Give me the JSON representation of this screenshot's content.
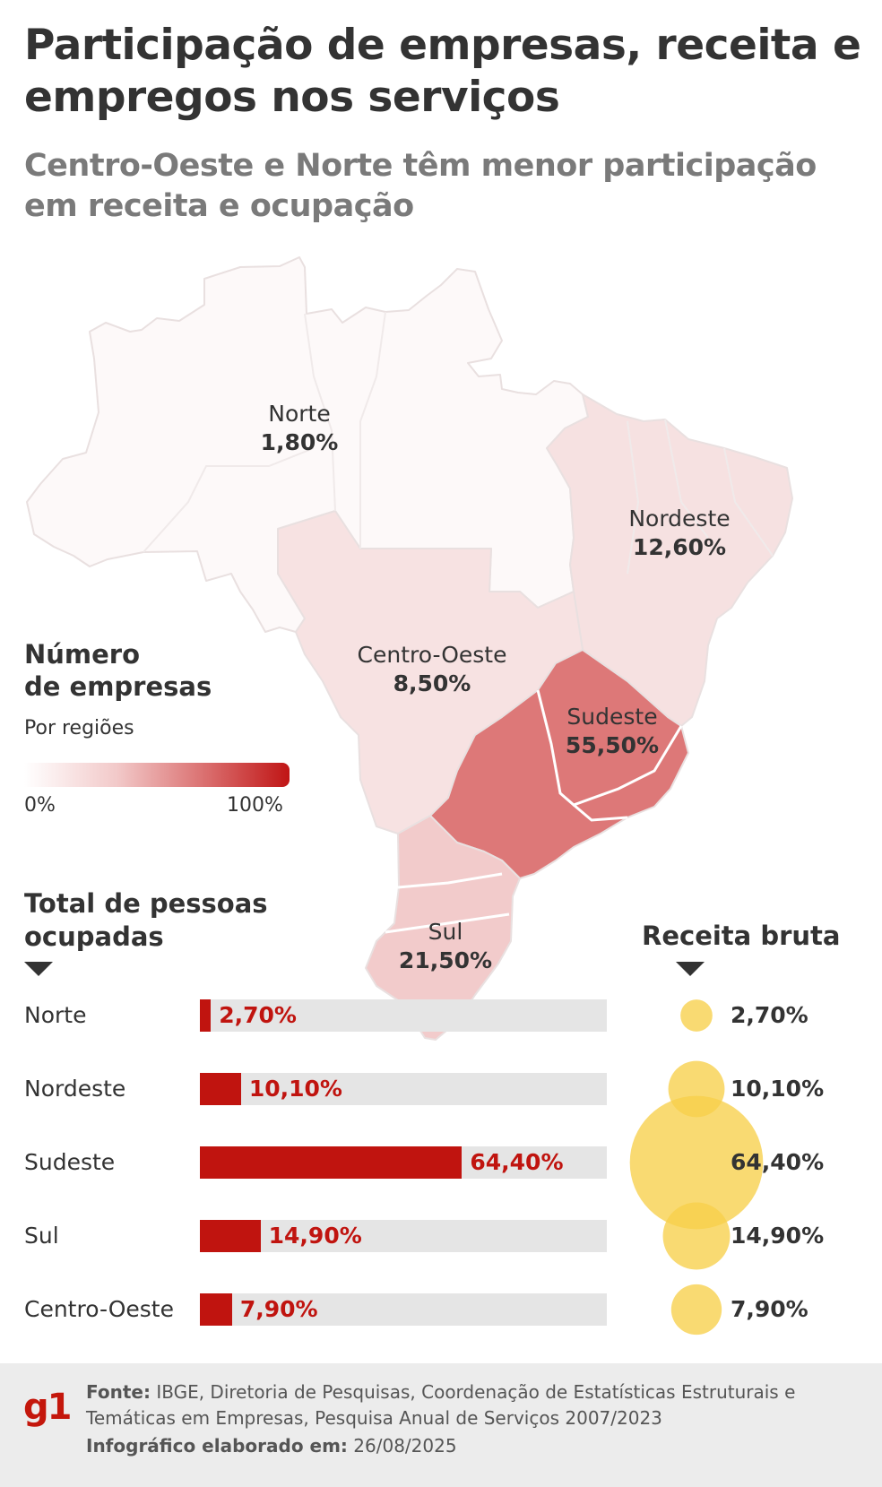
{
  "title": "Participação de empresas, receita e empregos nos serviços",
  "subtitle": "Centro-Oeste e Norte têm menor participação em receita e ocupação",
  "map_legend": {
    "title_line1": "Número",
    "title_line2": "de empresas",
    "subtitle": "Por regiões",
    "min_label": "0%",
    "max_label": "100%"
  },
  "employment_title_line1": "Total de pessoas",
  "employment_title_line2": "ocupadas",
  "revenue_title": "Receita bruta",
  "footer": {
    "logo": "g1",
    "source_label": "Fonte:",
    "source_text": "IBGE, Diretoria de Pesquisas, Coordenação de Estatísticas Estruturais e Temáticas em Empresas, Pesquisa Anual de Serviços 2007/2023",
    "date_label": "Infográfico elaborado em:",
    "date": "26/08/2025"
  },
  "colors": {
    "bar": "#c0140f",
    "bar_track": "#e5e5e5",
    "bubble": "#f7d04a",
    "map_scale_low": "#ffffff",
    "map_scale_high": "#c01515"
  },
  "chart_data": [
    {
      "type": "map",
      "title": "Número de empresas",
      "subtitle": "Por regiões",
      "regions": [
        {
          "name": "Norte",
          "value": 1.8,
          "label": "1,80%"
        },
        {
          "name": "Nordeste",
          "value": 12.6,
          "label": "12,60%"
        },
        {
          "name": "Centro-Oeste",
          "value": 8.5,
          "label": "8,50%"
        },
        {
          "name": "Sudeste",
          "value": 55.5,
          "label": "55,50%"
        },
        {
          "name": "Sul",
          "value": 21.5,
          "label": "21,50%"
        }
      ],
      "scale_range": [
        0,
        100
      ]
    },
    {
      "type": "bar",
      "title": "Total de pessoas ocupadas",
      "categories": [
        "Norte",
        "Nordeste",
        "Sudeste",
        "Sul",
        "Centro-Oeste"
      ],
      "values": [
        2.7,
        10.1,
        64.4,
        14.9,
        7.9
      ],
      "labels": [
        "2,70%",
        "10,10%",
        "64,40%",
        "14,90%",
        "7,90%"
      ],
      "ylim": [
        0,
        100
      ]
    },
    {
      "type": "bubble",
      "title": "Receita bruta",
      "categories": [
        "Norte",
        "Nordeste",
        "Sudeste",
        "Sul",
        "Centro-Oeste"
      ],
      "values": [
        2.7,
        10.1,
        64.4,
        14.9,
        7.9
      ],
      "labels": [
        "2,70%",
        "10,10%",
        "64,40%",
        "14,90%",
        "7,90%"
      ]
    }
  ]
}
